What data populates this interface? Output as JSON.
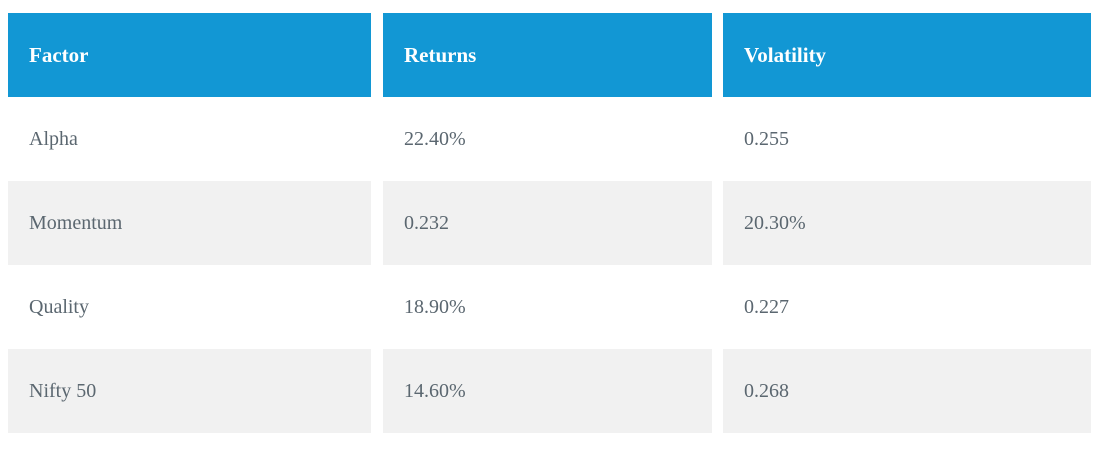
{
  "table": {
    "columns": [
      {
        "label": "Factor"
      },
      {
        "label": "Returns"
      },
      {
        "label": "Volatility"
      }
    ],
    "rows": [
      {
        "factor": "Alpha",
        "returns": "22.40%",
        "volatility": "0.255"
      },
      {
        "factor": "Momentum",
        "returns": "0.232",
        "volatility": "20.30%"
      },
      {
        "factor": "Quality",
        "returns": "18.90%",
        "volatility": "0.227"
      },
      {
        "factor": "Nifty 50",
        "returns": "14.60%",
        "volatility": "0.268"
      }
    ]
  },
  "colors": {
    "header_bg": "#1297d4",
    "header_text": "#ffffff",
    "row_alt_bg": "#f1f1f1",
    "body_text": "#5b6770"
  }
}
